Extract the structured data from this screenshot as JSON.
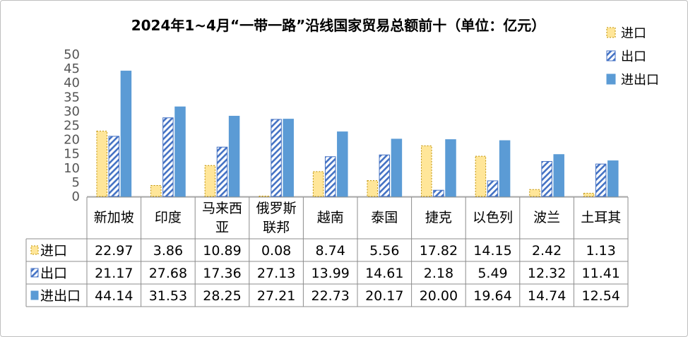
{
  "chart_data": {
    "type": "bar",
    "title": "2024年1~4月“一带一路”沿线国家贸易总额前十（单位：亿元）",
    "categories": [
      "新加坡",
      "印度",
      "马来西亚",
      "俄罗斯联邦",
      "越南",
      "泰国",
      "捷克",
      "以色列",
      "波兰",
      "土耳其"
    ],
    "category_lines": [
      [
        "新加坡"
      ],
      [
        "印度"
      ],
      [
        "马来西",
        "亚"
      ],
      [
        "俄罗斯",
        "联邦"
      ],
      [
        "越南"
      ],
      [
        "泰国"
      ],
      [
        "捷克"
      ],
      [
        "以色列"
      ],
      [
        "波兰"
      ],
      [
        "土耳其"
      ]
    ],
    "series": [
      {
        "name": "进口",
        "values": [
          22.97,
          3.86,
          10.89,
          0.08,
          8.74,
          5.56,
          17.82,
          14.15,
          2.42,
          1.13
        ],
        "value_labels": [
          "22.97",
          "3.86",
          "10.89",
          "0.08",
          "8.74",
          "5.56",
          "17.82",
          "14.15",
          "2.42",
          "1.13"
        ],
        "fill": "#ffe699",
        "stroke": "#bf9000",
        "pattern": "dotted-outline"
      },
      {
        "name": "出口",
        "values": [
          21.17,
          27.68,
          17.36,
          27.13,
          13.99,
          14.61,
          2.18,
          5.49,
          12.32,
          11.41
        ],
        "value_labels": [
          "21.17",
          "27.68",
          "17.36",
          "27.13",
          "13.99",
          "14.61",
          "2.18",
          "5.49",
          "12.32",
          "11.41"
        ],
        "fill": "#ffffff",
        "stroke": "#4472c4",
        "pattern": "diagonal-stripes"
      },
      {
        "name": "进出口",
        "values": [
          44.14,
          31.53,
          28.25,
          27.21,
          22.73,
          20.17,
          20.0,
          19.64,
          14.74,
          12.54
        ],
        "value_labels": [
          "44.14",
          "31.53",
          "28.25",
          "27.21",
          "22.73",
          "20.17",
          "20.00",
          "19.64",
          "14.74",
          "12.54"
        ],
        "fill": "#5b9bd5",
        "stroke": "#5b9bd5",
        "pattern": "solid"
      }
    ],
    "ylim": [
      0,
      50
    ],
    "yticks": [
      0,
      5,
      10,
      15,
      20,
      25,
      30,
      35,
      40,
      45,
      50
    ],
    "legend_position": "top-right",
    "data_table": true,
    "grid": false
  }
}
